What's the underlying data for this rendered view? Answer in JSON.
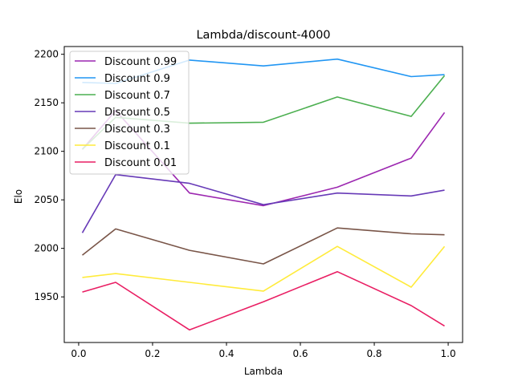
{
  "chart_data": {
    "type": "line",
    "title": "Lambda/discount-4000",
    "xlabel": "Lambda",
    "ylabel": "Elo",
    "xlim": [
      -0.039,
      1.039
    ],
    "ylim": [
      1903,
      2208
    ],
    "xticks": [
      0.0,
      0.2,
      0.4,
      0.6,
      0.8,
      1.0
    ],
    "xtick_labels": [
      "0.0",
      "0.2",
      "0.4",
      "0.6",
      "0.8",
      "1.0"
    ],
    "yticks": [
      1950,
      2000,
      2050,
      2100,
      2150,
      2200
    ],
    "ytick_labels": [
      "1950",
      "2000",
      "2050",
      "2100",
      "2150",
      "2200"
    ],
    "grid": false,
    "legend_position": "top-left",
    "x": [
      0.01,
      0.1,
      0.3,
      0.5,
      0.7,
      0.9,
      0.99
    ],
    "series": [
      {
        "name": "Discount 0.99",
        "color": "#9c27b0",
        "values": [
          2102,
          2142,
          2057,
          2044,
          2063,
          2093,
          2140
        ]
      },
      {
        "name": "Discount 0.9",
        "color": "#2196f3",
        "values": [
          2171,
          2170,
          2194,
          2188,
          2195,
          2177,
          2179
        ]
      },
      {
        "name": "Discount 0.7",
        "color": "#4caf50",
        "values": [
          2102,
          2135,
          2129,
          2130,
          2156,
          2136,
          2178
        ]
      },
      {
        "name": "Discount 0.5",
        "color": "#673ab7",
        "values": [
          2016,
          2076,
          2067,
          2045,
          2057,
          2054,
          2060
        ]
      },
      {
        "name": "Discount 0.3",
        "color": "#795548",
        "values": [
          1993,
          2020,
          1998,
          1984,
          2021,
          2015,
          2014
        ]
      },
      {
        "name": "Discount 0.1",
        "color": "#ffeb3b",
        "values": [
          1970,
          1974,
          1965,
          1956,
          2002,
          1960,
          2002
        ]
      },
      {
        "name": "Discount 0.01",
        "color": "#e91e63",
        "values": [
          1955,
          1965,
          1916,
          1945,
          1976,
          1941,
          1920
        ]
      }
    ]
  }
}
